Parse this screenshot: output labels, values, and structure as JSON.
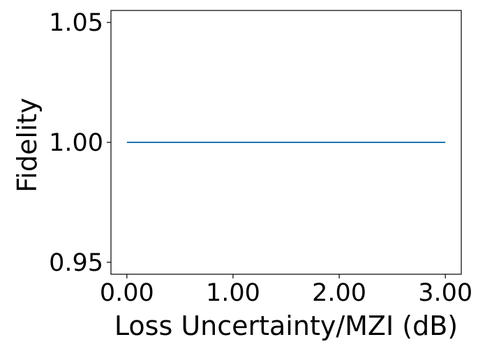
{
  "chart_data": {
    "type": "line",
    "title": "",
    "xlabel": "Loss Uncertainty/MZI (dB)",
    "ylabel": "Fidelity",
    "xlim": [
      -0.15,
      3.15
    ],
    "ylim": [
      0.945,
      1.055
    ],
    "x_ticks": [
      {
        "value": 0.0,
        "label": "0.00"
      },
      {
        "value": 1.0,
        "label": "1.00"
      },
      {
        "value": 2.0,
        "label": "2.00"
      },
      {
        "value": 3.0,
        "label": "3.00"
      }
    ],
    "y_ticks": [
      {
        "value": 0.95,
        "label": "0.95"
      },
      {
        "value": 1.0,
        "label": "1.00"
      },
      {
        "value": 1.05,
        "label": "1.05"
      }
    ],
    "grid": false,
    "legend": "none",
    "series": [
      {
        "color": "#1f77b4",
        "x": [
          0.0,
          0.5,
          1.0,
          1.5,
          2.0,
          2.5,
          3.0
        ],
        "y": [
          1.0,
          1.0,
          1.0,
          1.0,
          1.0,
          1.0,
          1.0
        ]
      }
    ]
  }
}
